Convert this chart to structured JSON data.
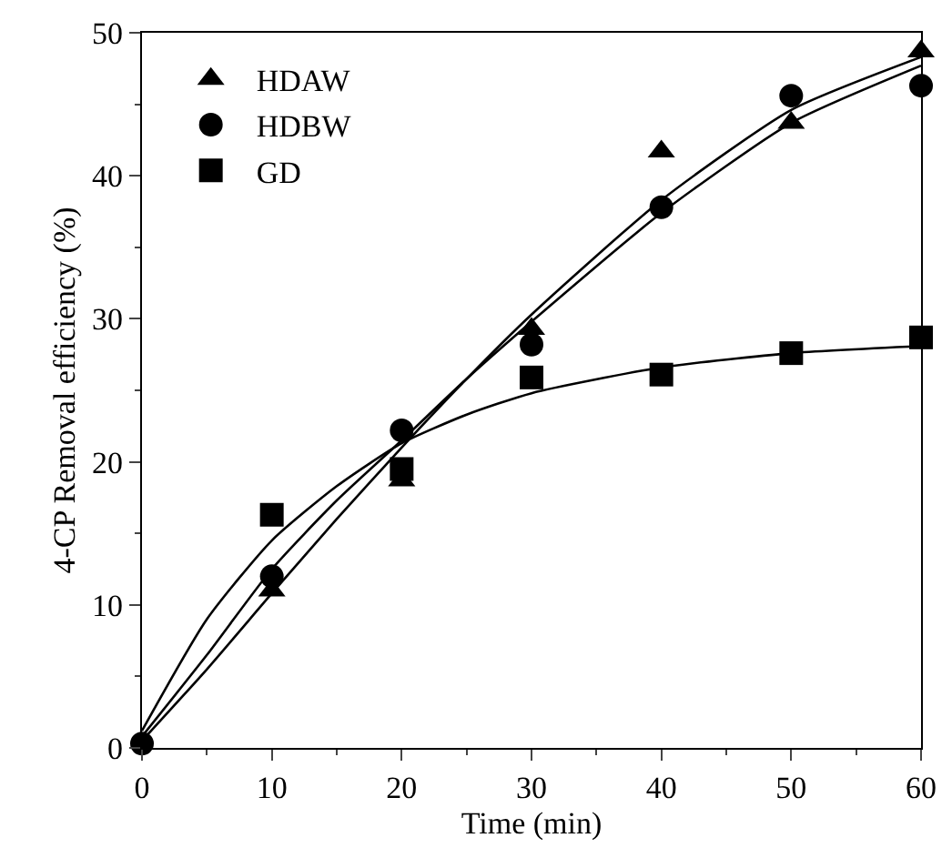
{
  "chart_data": {
    "type": "scatter",
    "xlabel": "Time (min)",
    "ylabel": "4-CP Removal efficiency (%)",
    "x": [
      0,
      10,
      20,
      30,
      40,
      50,
      60
    ],
    "series": [
      {
        "name": "HDAW",
        "color": "#000000",
        "marker": "triangle",
        "values": [
          null,
          11,
          18.7,
          29.3,
          41.7,
          43.7,
          48.7
        ]
      },
      {
        "name": "HDBW",
        "color": "#000000",
        "marker": "circle",
        "values": [
          0.3,
          12,
          22.2,
          28.2,
          37.8,
          45.6,
          46.3
        ]
      },
      {
        "name": "GD",
        "color": "#000000",
        "marker": "square",
        "values": [
          null,
          16.3,
          19.5,
          25.9,
          26.1,
          27.6,
          28.7
        ]
      },
      {
        "type": "line",
        "color": "#000000",
        "x": [
          0,
          5,
          10,
          15,
          20,
          25,
          30,
          40,
          50,
          60
        ],
        "values": [
          0.5,
          5.5,
          10.8,
          16,
          21,
          25.8,
          30.3,
          38.3,
          44.6,
          48.3
        ]
      },
      {
        "type": "line",
        "color": "#000000",
        "x": [
          0,
          5,
          10,
          15,
          20,
          25,
          30,
          40,
          50,
          60
        ],
        "values": [
          0.8,
          6.5,
          12.5,
          17.3,
          21.5,
          25.8,
          29.8,
          37.4,
          43.7,
          47.7
        ]
      },
      {
        "type": "line",
        "color": "#000000",
        "x": [
          0,
          5,
          10,
          15,
          20,
          25,
          30,
          40,
          50,
          60
        ],
        "values": [
          1.2,
          9,
          14.5,
          18.3,
          21.3,
          23.3,
          24.8,
          26.6,
          27.6,
          28.1
        ]
      }
    ],
    "xlim": [
      0,
      60
    ],
    "xticks": [
      0,
      10,
      20,
      30,
      40,
      50,
      60
    ],
    "ylim": [
      0,
      50
    ],
    "yticks": [
      0,
      10,
      20,
      30,
      40,
      50
    ],
    "grid": false,
    "legend": "top left"
  }
}
